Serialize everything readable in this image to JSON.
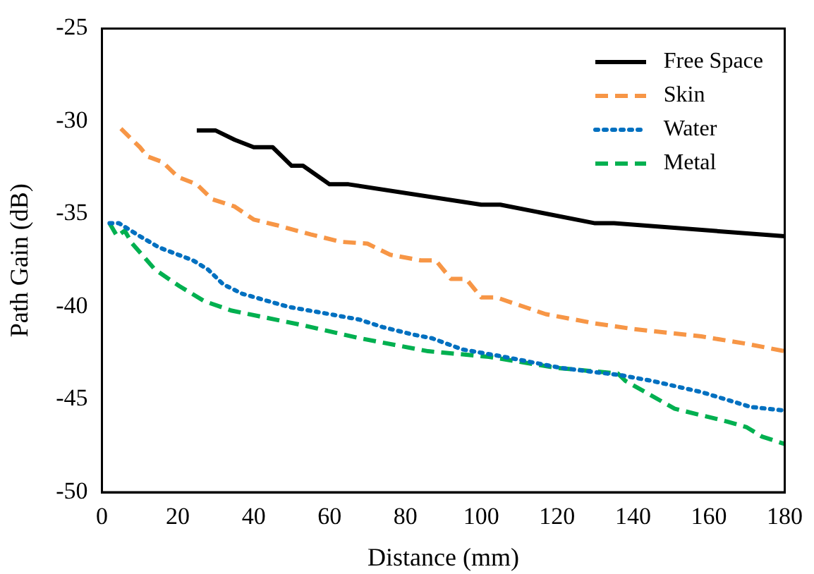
{
  "chart_data": {
    "type": "line",
    "xlabel": "Distance (mm)",
    "ylabel": "Path Gain (dB)",
    "xlim": [
      0,
      180
    ],
    "xticks": [
      0,
      20,
      40,
      60,
      80,
      100,
      120,
      140,
      160,
      180
    ],
    "ylim": [
      -50,
      -25
    ],
    "yticks": [
      -50,
      -45,
      -40,
      -35,
      -30,
      -25
    ],
    "grid": false,
    "legend": "top right",
    "marker": "none",
    "series": [
      {
        "name": "Free Space",
        "color": "#000000",
        "line_style": "solid",
        "x": [
          25,
          30,
          35,
          40,
          45,
          50,
          53,
          60,
          65,
          100,
          105,
          130,
          135,
          180
        ],
        "values": [
          -30.5,
          -30.5,
          -31,
          -31.4,
          -31.4,
          -32.4,
          -32.4,
          -33.4,
          -33.4,
          -34.5,
          -34.5,
          -35.5,
          -35.5,
          -36.2
        ]
      },
      {
        "name": "Skin",
        "color": "#f79646",
        "line_style": "dashed",
        "x": [
          5,
          10,
          12,
          16,
          20,
          25,
          29,
          35,
          40,
          46,
          55,
          63,
          70,
          76,
          84,
          88,
          92,
          96,
          100,
          104,
          117,
          130,
          140,
          158,
          170,
          180
        ],
        "values": [
          -30.4,
          -31.4,
          -31.9,
          -32.2,
          -33,
          -33.4,
          -34.2,
          -34.6,
          -35.3,
          -35.6,
          -36.1,
          -36.5,
          -36.6,
          -37.2,
          -37.5,
          -37.5,
          -38.5,
          -38.5,
          -39.5,
          -39.5,
          -40.4,
          -40.9,
          -41.2,
          -41.6,
          -42,
          -42.4
        ]
      },
      {
        "name": "Water",
        "color": "#0070c0",
        "line_style": "dotted",
        "x": [
          2,
          4.5,
          10,
          15,
          24,
          28,
          32,
          37,
          49,
          60,
          68,
          74,
          82,
          87,
          95,
          106,
          121,
          137,
          145,
          158,
          171,
          180
        ],
        "values": [
          -35.5,
          -35.5,
          -36.2,
          -36.8,
          -37.5,
          -38,
          -38.8,
          -39.3,
          -40,
          -40.4,
          -40.7,
          -41.1,
          -41.5,
          -41.7,
          -42.3,
          -42.7,
          -43.3,
          -43.7,
          -44,
          -44.6,
          -45.4,
          -45.6
        ]
      },
      {
        "name": "Metal",
        "color": "#00b050",
        "line_style": "dashed",
        "x": [
          2,
          4,
          6,
          8,
          14,
          20.5,
          27,
          34,
          53,
          68,
          86,
          102,
          120,
          136,
          138,
          151,
          165,
          170,
          174,
          180
        ],
        "values": [
          -35.5,
          -36.2,
          -35.9,
          -36.6,
          -38,
          -38.9,
          -39.7,
          -40.2,
          -41,
          -41.7,
          -42.4,
          -42.7,
          -43.3,
          -43.6,
          -44,
          -45.5,
          -46.2,
          -46.5,
          -47,
          -47.4
        ]
      }
    ]
  }
}
